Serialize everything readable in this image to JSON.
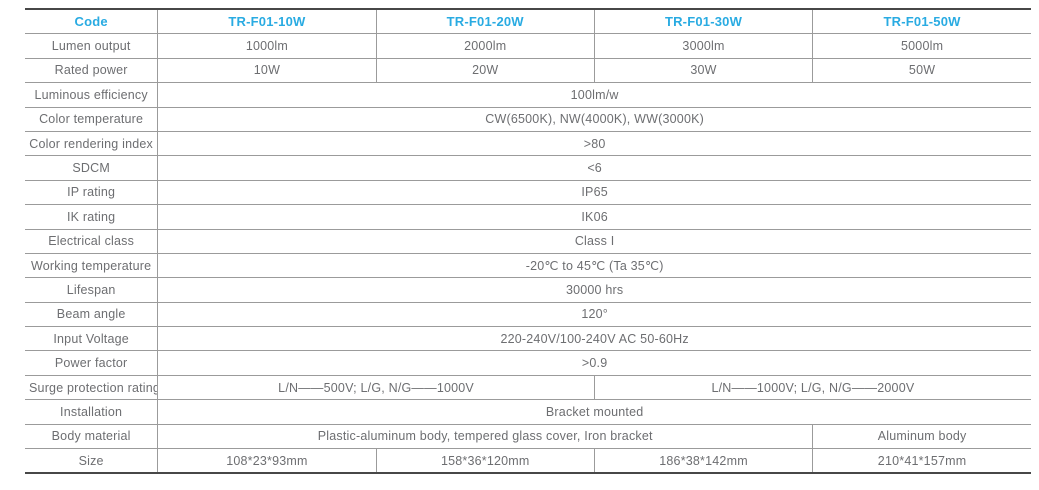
{
  "colors": {
    "accent": "#29abe2",
    "body_text": "#6d6e71",
    "border_thick": "#474747",
    "border_thin": "#9b9b9b",
    "background": "#ffffff"
  },
  "table": {
    "header": {
      "cells": [
        {
          "text": "Code",
          "span": 1,
          "name": "header-cell-code"
        },
        {
          "text": "TR-F01-10W",
          "span": 1,
          "name": "header-cell-tr-f01-10w"
        },
        {
          "text": "TR-F01-20W",
          "span": 1,
          "name": "header-cell-tr-f01-20w"
        },
        {
          "text": "TR-F01-30W",
          "span": 1,
          "name": "header-cell-tr-f01-30w"
        },
        {
          "text": "TR-F01-50W",
          "span": 1,
          "name": "header-cell-tr-f01-50w"
        }
      ]
    },
    "rows": [
      {
        "label": "Lumen output",
        "cells": [
          {
            "text": "1000lm",
            "span": 1
          },
          {
            "text": "2000lm",
            "span": 1
          },
          {
            "text": "3000lm",
            "span": 1
          },
          {
            "text": "5000lm",
            "span": 1
          }
        ]
      },
      {
        "label": "Rated power",
        "cells": [
          {
            "text": "10W",
            "span": 1
          },
          {
            "text": "20W",
            "span": 1
          },
          {
            "text": "30W",
            "span": 1
          },
          {
            "text": "50W",
            "span": 1
          }
        ]
      },
      {
        "label": "Luminous efficiency",
        "cells": [
          {
            "text": "100lm/w",
            "span": 4
          }
        ]
      },
      {
        "label": "Color temperature",
        "cells": [
          {
            "text": "CW(6500K), NW(4000K), WW(3000K)",
            "span": 4
          }
        ]
      },
      {
        "label": "Color rendering index",
        "cells": [
          {
            "text": ">80",
            "span": 4
          }
        ]
      },
      {
        "label": "SDCM",
        "cells": [
          {
            "text": "<6",
            "span": 4
          }
        ]
      },
      {
        "label": "IP rating",
        "cells": [
          {
            "text": "IP65",
            "span": 4
          }
        ]
      },
      {
        "label": "IK rating",
        "cells": [
          {
            "text": "IK06",
            "span": 4
          }
        ]
      },
      {
        "label": "Electrical class",
        "cells": [
          {
            "text": "Class I",
            "span": 4
          }
        ]
      },
      {
        "label": "Working temperature",
        "cells": [
          {
            "text": "-20℃ to 45℃ (Ta 35℃)",
            "span": 4
          }
        ]
      },
      {
        "label": "Lifespan",
        "cells": [
          {
            "text": "30000 hrs",
            "span": 4
          }
        ]
      },
      {
        "label": "Beam angle",
        "cells": [
          {
            "text": "120°",
            "span": 4
          }
        ]
      },
      {
        "label": "Input Voltage",
        "cells": [
          {
            "text": "220-240V/100-240V AC 50-60Hz",
            "span": 4
          }
        ]
      },
      {
        "label": "Power factor",
        "cells": [
          {
            "text": ">0.9",
            "span": 4
          }
        ]
      },
      {
        "label": "Surge protection rating",
        "cells": [
          {
            "text": "L/N——500V; L/G, N/G——1000V",
            "span": 2
          },
          {
            "text": "L/N——1000V; L/G, N/G——2000V",
            "span": 2
          }
        ]
      },
      {
        "label": "Installation",
        "cells": [
          {
            "text": "Bracket mounted",
            "span": 4
          }
        ]
      },
      {
        "label": "Body material",
        "cells": [
          {
            "text": "Plastic-aluminum body, tempered glass cover, Iron bracket",
            "span": 3
          },
          {
            "text": "Aluminum body",
            "span": 1
          }
        ]
      },
      {
        "label": "Size",
        "cells": [
          {
            "text": "108*23*93mm",
            "span": 1
          },
          {
            "text": "158*36*120mm",
            "span": 1
          },
          {
            "text": "186*38*142mm",
            "span": 1
          },
          {
            "text": "210*41*157mm",
            "span": 1
          }
        ]
      }
    ]
  }
}
